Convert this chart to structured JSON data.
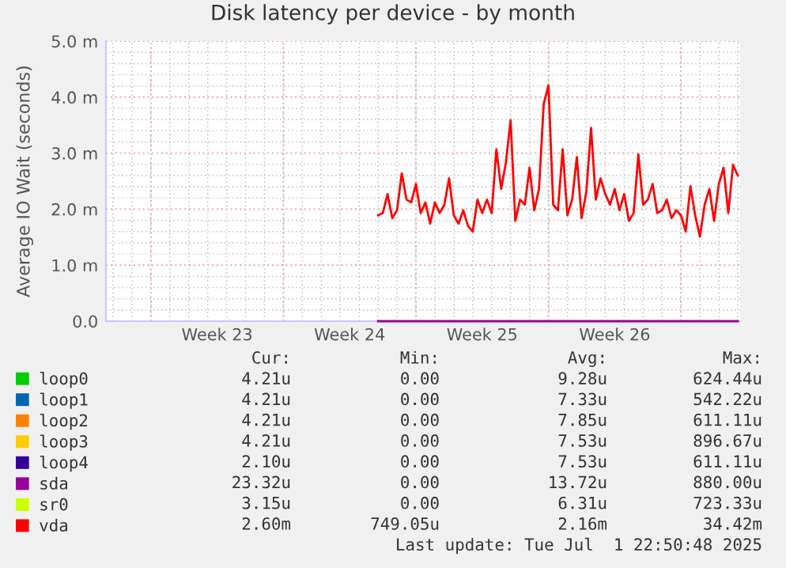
{
  "chart_data": {
    "type": "line",
    "title": "Disk latency per device - by month",
    "ylabel": "Average IO Wait (seconds)",
    "categories": [
      null,
      null,
      null,
      null,
      null,
      null,
      null,
      null,
      null,
      null,
      null,
      null,
      null,
      null,
      null,
      null,
      null,
      null,
      null,
      null,
      null,
      null,
      null,
      "Week 23",
      null,
      null,
      null,
      null,
      null,
      null,
      null,
      null,
      null,
      null,
      null,
      null,
      null,
      null,
      null,
      null,
      null,
      null,
      null,
      null,
      null,
      null,
      null,
      null,
      null,
      null,
      null,
      "Week 24",
      null,
      null,
      null,
      null,
      null,
      null,
      null,
      null,
      null,
      null,
      null,
      null,
      null,
      null,
      null,
      null,
      null,
      null,
      null,
      null,
      null,
      null,
      null,
      null,
      null,
      null,
      null,
      "Week 25",
      null,
      null,
      null,
      null,
      null,
      null,
      null,
      null,
      null,
      null,
      null,
      null,
      null,
      null,
      null,
      null,
      null,
      null,
      null,
      null,
      null,
      null,
      null,
      null,
      null,
      null,
      null,
      "Week 26",
      null,
      null,
      null,
      null,
      null,
      null,
      null,
      null,
      null,
      null,
      null,
      null,
      null,
      null,
      null,
      null,
      null,
      null,
      null,
      null,
      null,
      null,
      null,
      null,
      null,
      null
    ],
    "ylim": [
      0,
      5
    ],
    "yticks": [
      {
        "value": 0,
        "label": "0.0"
      },
      {
        "value": 1,
        "label": "1.0 m"
      },
      {
        "value": 2,
        "label": "2.0 m"
      },
      {
        "value": 3,
        "label": "3.0 m"
      },
      {
        "value": 4,
        "label": "4.0 m"
      },
      {
        "value": 5,
        "label": "5.0 m"
      }
    ],
    "grid": true,
    "legend": "bottom",
    "line_style": "solid",
    "series": [
      {
        "name": "loop0",
        "color": "#00cc00",
        "values": [
          null,
          null,
          null,
          null,
          null,
          null,
          null,
          null,
          null,
          null,
          null,
          null,
          null,
          null,
          null,
          null,
          null,
          null,
          null,
          null,
          null,
          null,
          null,
          null,
          null,
          null,
          null,
          null,
          null,
          null,
          null,
          null,
          null,
          null,
          null,
          null,
          null,
          null,
          null,
          null,
          null,
          null,
          null,
          null,
          null,
          null,
          null,
          null,
          null,
          null,
          null,
          null,
          null,
          null,
          null,
          null,
          null,
          null,
          null,
          null,
          null,
          null,
          null,
          null,
          null,
          null,
          null,
          null,
          null,
          null,
          null,
          null,
          null,
          null,
          null,
          null,
          null,
          null,
          null,
          null,
          null,
          null,
          null,
          null,
          null,
          null,
          null,
          null,
          null,
          null,
          null,
          null,
          null,
          null,
          null,
          null,
          null,
          null,
          null,
          null,
          null,
          null,
          null,
          null,
          null,
          null,
          null,
          null,
          null,
          null,
          null,
          null,
          null,
          null,
          null,
          null,
          null,
          null,
          null,
          null,
          null,
          null,
          null,
          null,
          null,
          null,
          null,
          null,
          null,
          null,
          null,
          null,
          null,
          null
        ]
      },
      {
        "name": "loop1",
        "color": "#0066b3",
        "values": [
          null,
          null,
          null,
          null,
          null,
          null,
          null,
          null,
          null,
          null,
          null,
          null,
          null,
          null,
          null,
          null,
          null,
          null,
          null,
          null,
          null,
          null,
          null,
          null,
          null,
          null,
          null,
          null,
          null,
          null,
          null,
          null,
          null,
          null,
          null,
          null,
          null,
          null,
          null,
          null,
          null,
          null,
          null,
          null,
          null,
          null,
          null,
          null,
          null,
          null,
          null,
          null,
          null,
          null,
          null,
          null,
          null,
          null,
          null,
          null,
          null,
          null,
          null,
          null,
          null,
          null,
          null,
          null,
          null,
          null,
          null,
          null,
          null,
          null,
          null,
          null,
          null,
          null,
          null,
          null,
          null,
          null,
          null,
          null,
          null,
          null,
          null,
          null,
          null,
          null,
          null,
          null,
          null,
          null,
          null,
          null,
          null,
          null,
          null,
          null,
          null,
          null,
          null,
          null,
          null,
          null,
          null,
          null,
          null,
          null,
          null,
          null,
          null,
          null,
          null,
          null,
          null,
          null,
          null,
          null,
          null,
          null,
          null,
          null,
          null,
          null,
          null,
          null,
          null,
          null,
          null,
          null,
          null,
          null
        ]
      },
      {
        "name": "loop2",
        "color": "#ff8000",
        "values": [
          null,
          null,
          null,
          null,
          null,
          null,
          null,
          null,
          null,
          null,
          null,
          null,
          null,
          null,
          null,
          null,
          null,
          null,
          null,
          null,
          null,
          null,
          null,
          null,
          null,
          null,
          null,
          null,
          null,
          null,
          null,
          null,
          null,
          null,
          null,
          null,
          null,
          null,
          null,
          null,
          null,
          null,
          null,
          null,
          null,
          null,
          null,
          null,
          null,
          null,
          null,
          null,
          null,
          null,
          null,
          null,
          null,
          null,
          null,
          null,
          null,
          null,
          null,
          null,
          null,
          null,
          null,
          null,
          null,
          null,
          null,
          null,
          null,
          null,
          null,
          null,
          null,
          null,
          null,
          null,
          null,
          null,
          null,
          null,
          null,
          null,
          null,
          null,
          null,
          null,
          null,
          null,
          null,
          null,
          null,
          null,
          null,
          null,
          null,
          null,
          null,
          null,
          null,
          null,
          null,
          null,
          null,
          null,
          null,
          null,
          null,
          null,
          null,
          null,
          null,
          null,
          null,
          null,
          null,
          null,
          null,
          null,
          null,
          null,
          null,
          null,
          null,
          null,
          null,
          null,
          null,
          null,
          null,
          null
        ]
      },
      {
        "name": "loop3",
        "color": "#ffcc00",
        "values": [
          null,
          null,
          null,
          null,
          null,
          null,
          null,
          null,
          null,
          null,
          null,
          null,
          null,
          null,
          null,
          null,
          null,
          null,
          null,
          null,
          null,
          null,
          null,
          null,
          null,
          null,
          null,
          null,
          null,
          null,
          null,
          null,
          null,
          null,
          null,
          null,
          null,
          null,
          null,
          null,
          null,
          null,
          null,
          null,
          null,
          null,
          null,
          null,
          null,
          null,
          null,
          null,
          null,
          null,
          null,
          null,
          null,
          null,
          null,
          null,
          null,
          null,
          null,
          null,
          null,
          null,
          null,
          null,
          null,
          null,
          null,
          null,
          null,
          null,
          null,
          null,
          null,
          null,
          null,
          null,
          null,
          null,
          null,
          null,
          null,
          null,
          null,
          null,
          null,
          null,
          null,
          null,
          null,
          null,
          null,
          null,
          null,
          null,
          null,
          null,
          null,
          null,
          null,
          null,
          null,
          null,
          null,
          null,
          null,
          null,
          null,
          null,
          null,
          null,
          null,
          null,
          null,
          null,
          null,
          null,
          null,
          null,
          null,
          null,
          null,
          null,
          null,
          null,
          null,
          null,
          null,
          null,
          null,
          null
        ]
      },
      {
        "name": "loop4",
        "color": "#330099",
        "values": [
          null,
          null,
          null,
          null,
          null,
          null,
          null,
          null,
          null,
          null,
          null,
          null,
          null,
          null,
          null,
          null,
          null,
          null,
          null,
          null,
          null,
          null,
          null,
          null,
          null,
          null,
          null,
          null,
          null,
          null,
          null,
          null,
          null,
          null,
          null,
          null,
          null,
          null,
          null,
          null,
          null,
          null,
          null,
          null,
          null,
          null,
          null,
          null,
          null,
          null,
          null,
          null,
          null,
          null,
          null,
          null,
          null,
          null,
          null,
          null,
          null,
          null,
          null,
          null,
          null,
          null,
          null,
          null,
          null,
          null,
          null,
          null,
          null,
          null,
          null,
          null,
          null,
          null,
          null,
          null,
          null,
          null,
          null,
          null,
          null,
          null,
          null,
          null,
          null,
          null,
          null,
          null,
          null,
          null,
          null,
          null,
          null,
          null,
          null,
          null,
          null,
          null,
          null,
          null,
          null,
          null,
          null,
          null,
          null,
          null,
          null,
          null,
          null,
          null,
          null,
          null,
          null,
          null,
          null,
          null,
          null,
          null,
          null,
          null,
          null,
          null,
          null,
          null,
          null,
          null,
          null,
          null,
          null,
          null
        ]
      },
      {
        "name": "sda",
        "color": "#990099",
        "values": [
          null,
          null,
          null,
          null,
          null,
          null,
          null,
          null,
          null,
          null,
          null,
          null,
          null,
          null,
          null,
          null,
          null,
          null,
          null,
          null,
          null,
          null,
          null,
          null,
          null,
          null,
          null,
          null,
          null,
          null,
          null,
          null,
          null,
          null,
          null,
          null,
          null,
          null,
          null,
          null,
          null,
          null,
          null,
          null,
          null,
          null,
          null,
          null,
          null,
          null,
          null,
          null,
          null,
          null,
          null,
          null,
          null,
          0,
          0,
          0,
          0,
          0,
          0,
          0,
          0,
          0,
          0,
          0,
          0,
          0,
          0,
          0,
          0,
          0,
          0,
          0,
          0,
          0,
          0,
          0,
          0,
          0,
          0,
          0,
          0,
          0,
          0,
          0,
          0,
          0,
          0,
          0,
          0,
          0,
          0,
          0,
          0,
          0,
          0,
          0,
          0,
          0,
          0,
          0,
          0,
          0,
          0,
          0,
          0,
          0,
          0,
          0,
          0,
          0,
          0,
          0,
          0,
          0,
          0,
          0,
          0,
          0,
          0,
          0,
          0,
          0,
          0,
          0,
          0,
          0,
          0,
          0,
          0,
          0
        ]
      },
      {
        "name": "sr0",
        "color": "#ccff00",
        "values": [
          null,
          null,
          null,
          null,
          null,
          null,
          null,
          null,
          null,
          null,
          null,
          null,
          null,
          null,
          null,
          null,
          null,
          null,
          null,
          null,
          null,
          null,
          null,
          null,
          null,
          null,
          null,
          null,
          null,
          null,
          null,
          null,
          null,
          null,
          null,
          null,
          null,
          null,
          null,
          null,
          null,
          null,
          null,
          null,
          null,
          null,
          null,
          null,
          null,
          null,
          null,
          null,
          null,
          null,
          null,
          null,
          null,
          null,
          null,
          null,
          null,
          null,
          null,
          null,
          null,
          null,
          null,
          null,
          null,
          null,
          null,
          null,
          null,
          null,
          null,
          null,
          null,
          null,
          null,
          null,
          null,
          null,
          null,
          null,
          null,
          null,
          null,
          null,
          null,
          null,
          null,
          null,
          null,
          null,
          null,
          null,
          null,
          null,
          null,
          null,
          null,
          null,
          null,
          null,
          null,
          null,
          null,
          null,
          null,
          null,
          null,
          null,
          null,
          null,
          null,
          null,
          null,
          null,
          null,
          null,
          null,
          null,
          null,
          null,
          null,
          null,
          null,
          null,
          null,
          null,
          null,
          null,
          null,
          null
        ]
      },
      {
        "name": "vda",
        "color": "#ff0000",
        "values": [
          null,
          null,
          null,
          null,
          null,
          null,
          null,
          null,
          null,
          null,
          null,
          null,
          null,
          null,
          null,
          null,
          null,
          null,
          null,
          null,
          null,
          null,
          null,
          null,
          null,
          null,
          null,
          null,
          null,
          null,
          null,
          null,
          null,
          null,
          null,
          null,
          null,
          null,
          null,
          null,
          null,
          null,
          null,
          null,
          null,
          null,
          null,
          null,
          null,
          null,
          null,
          null,
          null,
          null,
          null,
          null,
          null,
          1.89,
          1.93,
          2.27,
          1.84,
          1.98,
          2.64,
          2.17,
          2.12,
          2.45,
          1.93,
          2.12,
          1.74,
          2.12,
          1.93,
          2.08,
          2.55,
          1.89,
          1.74,
          1.98,
          1.7,
          1.6,
          2.17,
          1.93,
          2.17,
          1.93,
          3.07,
          2.36,
          2.83,
          3.59,
          1.79,
          2.17,
          2.08,
          2.74,
          1.98,
          2.36,
          3.88,
          4.21,
          2.08,
          1.98,
          3.07,
          1.89,
          2.17,
          2.93,
          1.84,
          2.31,
          3.45,
          2.17,
          2.55,
          2.27,
          2.08,
          2.36,
          1.98,
          2.27,
          1.79,
          1.93,
          2.98,
          2.08,
          2.17,
          2.45,
          1.93,
          1.98,
          2.17,
          1.84,
          1.98,
          1.89,
          1.6,
          2.41,
          1.89,
          1.51,
          2.08,
          2.36,
          1.79,
          2.45,
          2.74,
          1.93,
          2.79,
          2.6
        ]
      }
    ],
    "annotations": [
      "Cur:",
      "Min:",
      "Avg:",
      "Max:",
      "4.21u",
      "0.00",
      "9.28u",
      "624.44u",
      "4.21u",
      "0.00",
      "7.33u",
      "542.22u",
      "4.21u",
      "0.00",
      "7.85u",
      "611.11u",
      "4.21u",
      "0.00",
      "7.53u",
      "896.67u",
      "2.10u",
      "0.00",
      "7.53u",
      "611.11u",
      "23.32u",
      "0.00",
      "13.72u",
      "880.00u",
      "3.15u",
      "0.00",
      "6.31u",
      "723.33u",
      "2.60m",
      "749.05u",
      "2.16m",
      "34.42m",
      "Last update: Tue Jul  1 22:50:48 2025"
    ]
  }
}
